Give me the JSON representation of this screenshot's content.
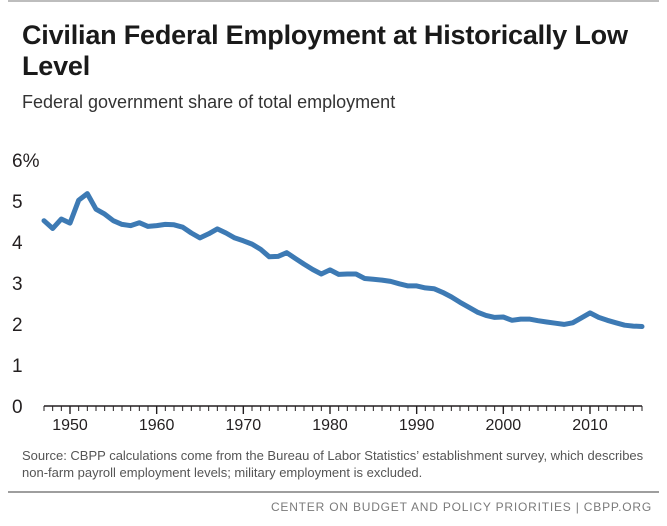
{
  "title": "Civilian Federal Employment at Historically Low Level",
  "subtitle": "Federal government share of total employment",
  "source_note": "Source: CBPP calculations come from the Bureau of Labor Statistics’ establishment survey, which describes non-farm payroll employment levels; military employment is excluded.",
  "footer": "CENTER ON BUDGET AND POLICY PRIORITIES | CBPP.ORG",
  "colors": {
    "line": "#3d7ab4",
    "axis": "#231f20",
    "text": "#231f20"
  },
  "chart_data": {
    "type": "line",
    "title": "Civilian Federal Employment at Historically Low Level",
    "subtitle": "Federal government share of total employment",
    "xlabel": "",
    "ylabel": "",
    "xlim": [
      1947,
      2016
    ],
    "ylim": [
      0,
      6
    ],
    "y_ticks": [
      0,
      1,
      2,
      3,
      4,
      5,
      6
    ],
    "y_tick_labels": [
      "0",
      "1",
      "2",
      "3",
      "4",
      "5",
      "6%"
    ],
    "x_tick_labels": [
      "1950",
      "1960",
      "1970",
      "1980",
      "1990",
      "2000",
      "2010"
    ],
    "x_label_years": [
      1950,
      1960,
      1970,
      1980,
      1990,
      2000,
      2010
    ],
    "grid": false,
    "series": [
      {
        "name": "Federal government share of total employment",
        "x": [
          1947,
          1948,
          1949,
          1950,
          1951,
          1952,
          1953,
          1954,
          1955,
          1956,
          1957,
          1958,
          1959,
          1960,
          1961,
          1962,
          1963,
          1964,
          1965,
          1966,
          1967,
          1968,
          1969,
          1970,
          1971,
          1972,
          1973,
          1974,
          1975,
          1976,
          1977,
          1978,
          1979,
          1980,
          1981,
          1982,
          1983,
          1984,
          1985,
          1986,
          1987,
          1988,
          1989,
          1990,
          1991,
          1992,
          1993,
          1994,
          1995,
          1996,
          1997,
          1998,
          1999,
          2000,
          2001,
          2002,
          2003,
          2004,
          2005,
          2006,
          2007,
          2008,
          2009,
          2010,
          2011,
          2012,
          2013,
          2014,
          2015,
          2016
        ],
        "values": [
          4.52,
          4.33,
          4.56,
          4.46,
          5.02,
          5.18,
          4.8,
          4.68,
          4.52,
          4.43,
          4.4,
          4.47,
          4.38,
          4.4,
          4.43,
          4.42,
          4.36,
          4.22,
          4.1,
          4.2,
          4.32,
          4.22,
          4.1,
          4.03,
          3.95,
          3.82,
          3.64,
          3.65,
          3.74,
          3.6,
          3.46,
          3.33,
          3.22,
          3.32,
          3.21,
          3.22,
          3.22,
          3.11,
          3.09,
          3.07,
          3.04,
          2.98,
          2.93,
          2.93,
          2.88,
          2.86,
          2.77,
          2.66,
          2.53,
          2.41,
          2.29,
          2.21,
          2.16,
          2.17,
          2.09,
          2.12,
          2.12,
          2.08,
          2.05,
          2.02,
          1.99,
          2.03,
          2.15,
          2.27,
          2.16,
          2.09,
          2.03,
          1.97,
          1.95,
          1.94
        ]
      }
    ]
  }
}
